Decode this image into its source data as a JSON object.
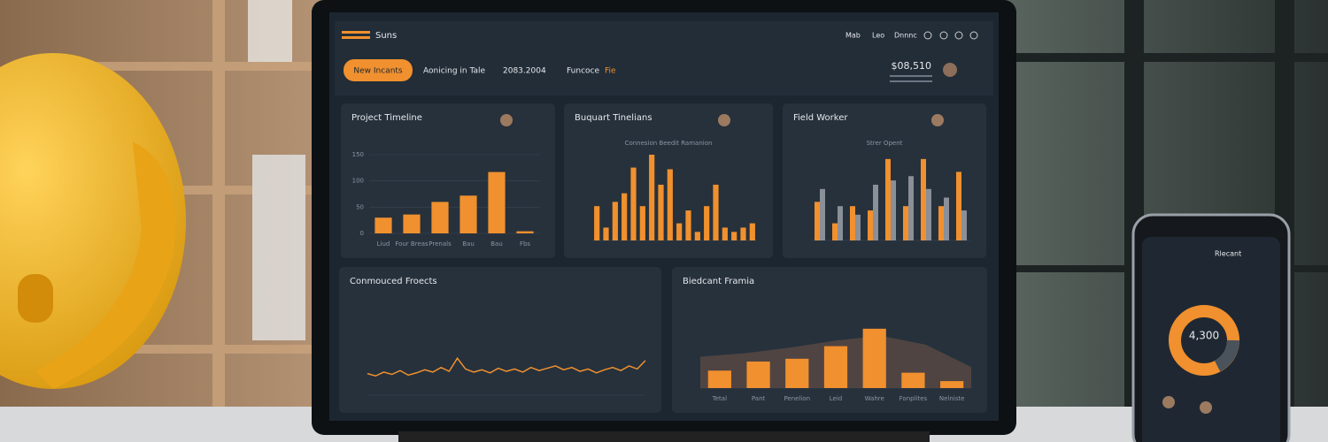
{
  "header": {
    "logo": "Suns",
    "nav": [
      "Mab",
      "Leo",
      "Dnnnc"
    ],
    "tabs": [
      "New Incants",
      "Aonicing in Tale",
      "2083.2004",
      "Funcoce"
    ],
    "tab_accent": "Fie",
    "amount": "$08,510"
  },
  "chart_data": [
    {
      "type": "bar",
      "title": "Project Timeline",
      "color": "#f0902e",
      "categories": [
        "Liud",
        "Four Breas",
        "Prenals",
        "Bau",
        "Bau",
        "Fbs"
      ],
      "values": [
        30,
        36,
        60,
        72,
        117,
        4
      ],
      "ylim": [
        0,
        150
      ],
      "yticks": [
        0,
        50,
        100,
        150
      ],
      "grid": true
    },
    {
      "type": "bar",
      "title": "Buquart Tinelians",
      "subtitle": "Connesion Beedit Ramanion",
      "color": "#f0902e",
      "values": [
        40,
        15,
        45,
        55,
        85,
        40,
        100,
        65,
        83,
        20,
        35,
        10,
        40,
        65,
        15,
        10,
        15,
        20
      ],
      "ylim": [
        0,
        100
      ],
      "grid": true
    },
    {
      "type": "bar",
      "title": "Field Worker",
      "subtitle": "Strer Opent",
      "series": [
        {
          "color": "#f0902e",
          "values": [
            45,
            20,
            40,
            35,
            95,
            40,
            95,
            40,
            80
          ]
        },
        {
          "color": "#8a8f98",
          "values": [
            60,
            40,
            30,
            65,
            70,
            75,
            60,
            50,
            35
          ]
        }
      ],
      "ylim": [
        0,
        100
      ],
      "grid": true
    },
    {
      "type": "line",
      "title": "Conmouced Froects",
      "color": "#f0902e",
      "values": [
        28,
        25,
        30,
        27,
        32,
        26,
        29,
        33,
        30,
        36,
        31,
        48,
        34,
        30,
        33,
        29,
        35,
        31,
        34,
        30,
        36,
        32,
        35,
        38,
        33,
        36,
        31,
        34,
        29,
        33,
        36,
        32,
        38,
        34,
        45
      ],
      "ylim": [
        0,
        100
      ],
      "grid": true
    },
    {
      "type": "combo",
      "title": "Biedcant Framia",
      "categories": [
        "Tetal",
        "Pant",
        "Penelion",
        "Leid",
        "Wahre",
        "Fonplites",
        "Nelniste"
      ],
      "series": [
        {
          "color": "#5a4a44",
          "values": [
            45,
            50,
            58,
            68,
            75,
            62,
            30
          ]
        },
        {
          "color": "#f0902e",
          "values": [
            25,
            38,
            42,
            60,
            85,
            22,
            10
          ]
        }
      ],
      "ylim": [
        0,
        100
      ],
      "grid": true
    }
  ],
  "phone": {
    "title": "Rlecant",
    "center_value": "4,300"
  }
}
